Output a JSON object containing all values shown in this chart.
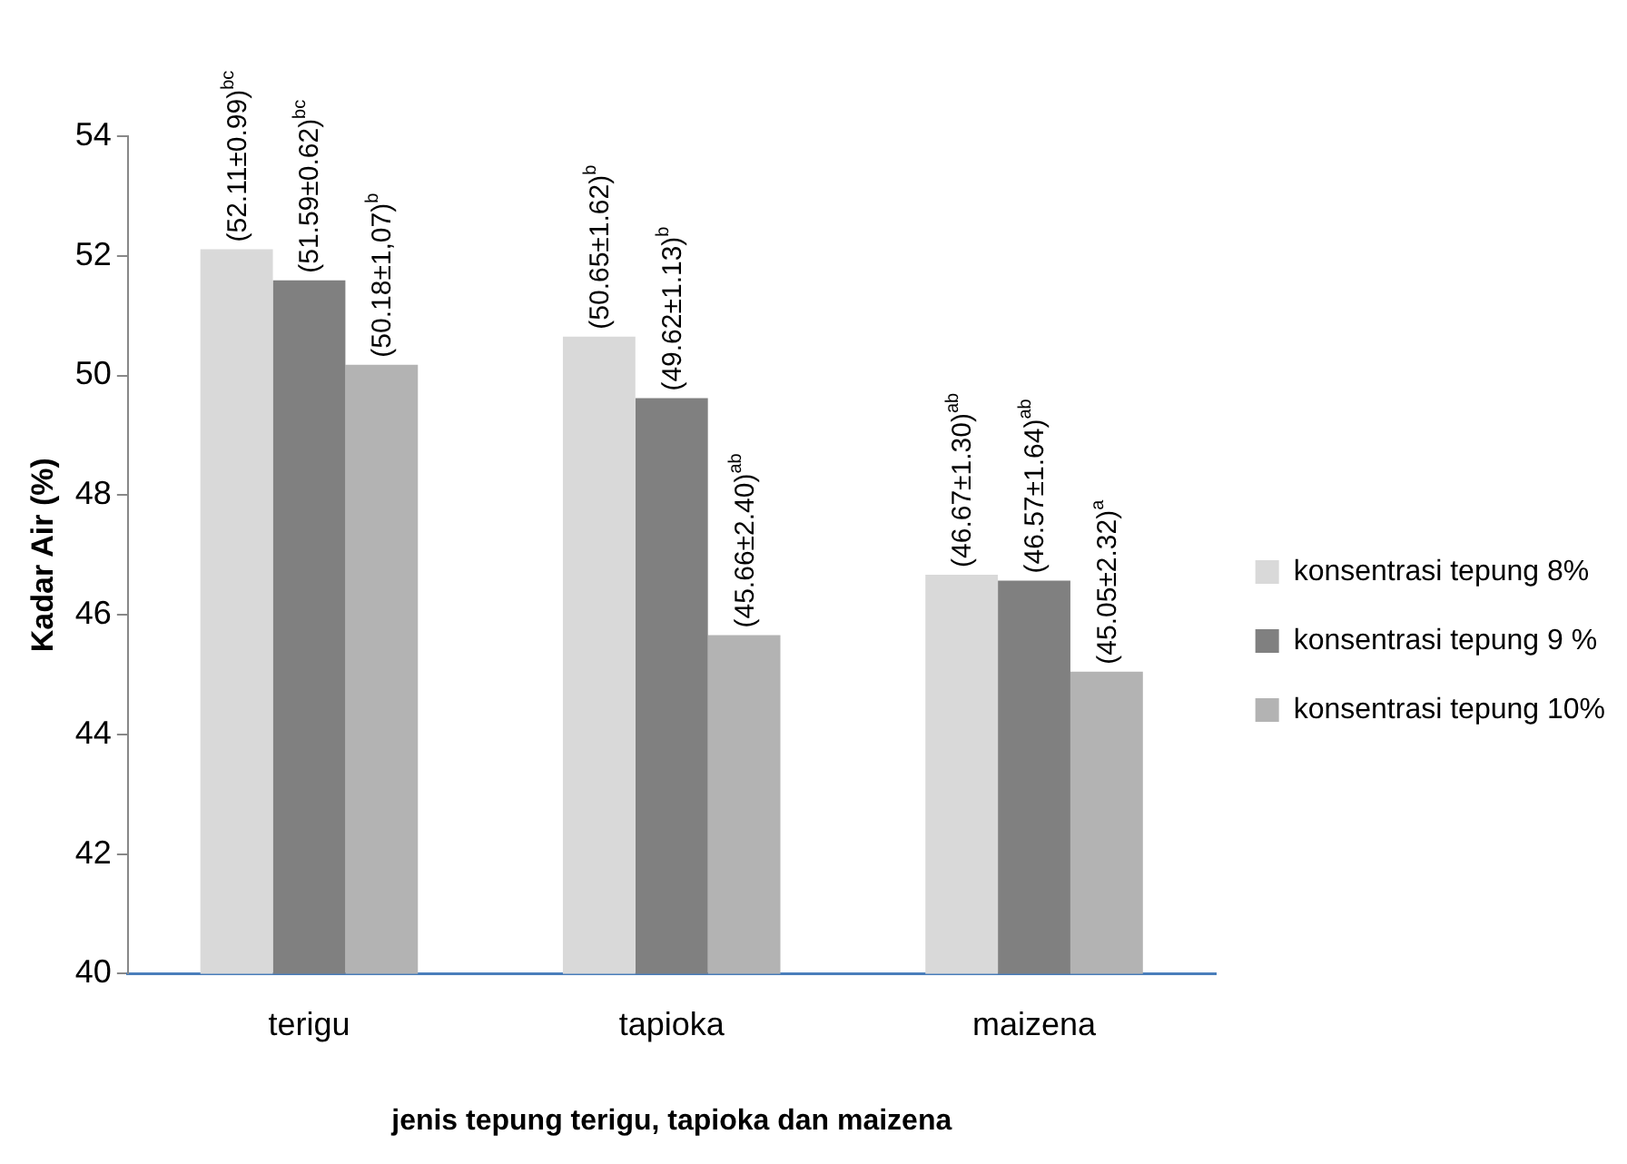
{
  "chart_data": {
    "type": "bar",
    "xlabel": "jenis tepung terigu, tapioka dan maizena",
    "ylabel": "Kadar Air (%)",
    "categories": [
      "terigu",
      "tapioka",
      "maizena"
    ],
    "series": [
      {
        "name": "konsentrasi tepung 8%",
        "color": "#d9d9d9",
        "values": [
          52.11,
          50.65,
          46.67
        ],
        "value_labels": [
          "(52.11±0.99)$^{bc}$",
          "(50.65±1.62)$^{b}$",
          "(46.67±1.30)$^{ab}$"
        ]
      },
      {
        "name": "konsentrasi tepung 9 %",
        "color": "#808080",
        "values": [
          51.59,
          49.62,
          46.57
        ],
        "value_labels": [
          "(51.59±0.62)$^{bc}$",
          "(49.62±1.13)$^{b}$",
          "(46.57±1.64)$^{ab}$"
        ]
      },
      {
        "name": "konsentrasi tepung 10%",
        "color": "#b3b3b3",
        "values": [
          50.18,
          45.66,
          45.05
        ],
        "value_labels": [
          "(50.18±1,07)$^{b}$",
          "(45.66±2.40)$^{ab}$",
          "(45.05±2.32)$^{a}$"
        ]
      }
    ],
    "ylim": [
      40,
      54
    ],
    "yticks": [
      40,
      42,
      44,
      46,
      48,
      50,
      52,
      54
    ],
    "grid": false,
    "legend": "right"
  }
}
